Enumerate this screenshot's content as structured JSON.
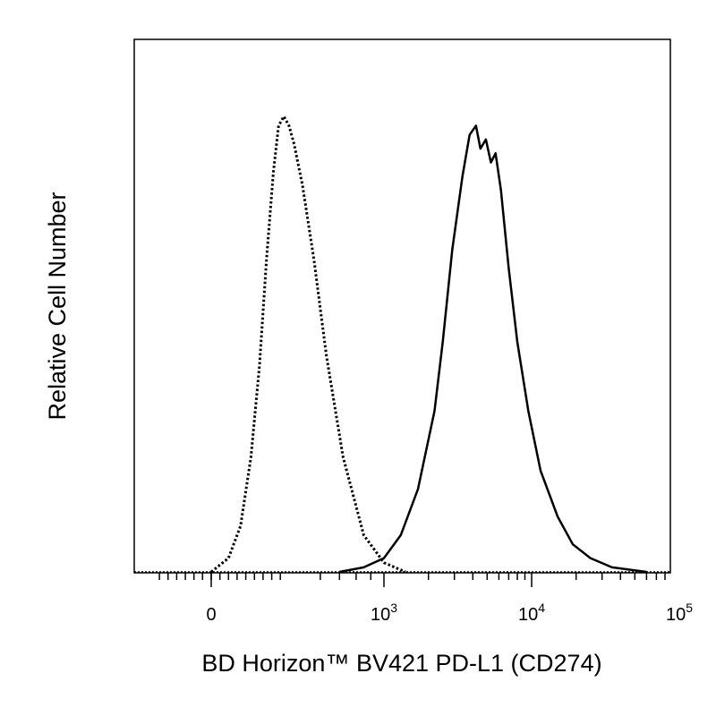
{
  "chart_data": {
    "type": "area",
    "title": "",
    "xlabel": "BD Horizon™ BV421 PD-L1 (CD274)",
    "ylabel": "Relative Cell Number",
    "x_scale": "biexponential",
    "xlim": [
      -300,
      200000
    ],
    "ylim": [
      0,
      1.0
    ],
    "grid": false,
    "legend": "none",
    "x_ticks": [
      {
        "value": 0,
        "base": "0",
        "exp": ""
      },
      {
        "value": 1000,
        "base": "10",
        "exp": "3"
      },
      {
        "value": 10000,
        "base": "10",
        "exp": "4"
      },
      {
        "value": 100000,
        "base": "10",
        "exp": "5"
      }
    ],
    "series": [
      {
        "line_style": "dotted",
        "color": "#000000",
        "points": [
          [
            0,
            0.0
          ],
          [
            100,
            0.03
          ],
          [
            170,
            0.1
          ],
          [
            230,
            0.25
          ],
          [
            280,
            0.45
          ],
          [
            320,
            0.68
          ],
          [
            360,
            0.87
          ],
          [
            390,
            0.97
          ],
          [
            420,
            0.99
          ],
          [
            450,
            0.97
          ],
          [
            480,
            0.93
          ],
          [
            520,
            0.84
          ],
          [
            570,
            0.68
          ],
          [
            630,
            0.47
          ],
          [
            720,
            0.25
          ],
          [
            850,
            0.08
          ],
          [
            1000,
            0.02
          ],
          [
            1400,
            0.0
          ]
        ]
      },
      {
        "line_style": "solid",
        "color": "#000000",
        "points": [
          [
            700,
            0.0
          ],
          [
            850,
            0.01
          ],
          [
            1000,
            0.03
          ],
          [
            1300,
            0.08
          ],
          [
            1700,
            0.18
          ],
          [
            2200,
            0.35
          ],
          [
            2500,
            0.5
          ],
          [
            2900,
            0.7
          ],
          [
            3400,
            0.86
          ],
          [
            3800,
            0.95
          ],
          [
            4200,
            0.97
          ],
          [
            4500,
            0.92
          ],
          [
            4900,
            0.94
          ],
          [
            5300,
            0.89
          ],
          [
            5700,
            0.91
          ],
          [
            6200,
            0.83
          ],
          [
            7000,
            0.66
          ],
          [
            8000,
            0.5
          ],
          [
            9500,
            0.35
          ],
          [
            11500,
            0.22
          ],
          [
            15000,
            0.12
          ],
          [
            19000,
            0.06
          ],
          [
            25000,
            0.03
          ],
          [
            35000,
            0.01
          ],
          [
            60000,
            0.0
          ]
        ]
      }
    ]
  }
}
